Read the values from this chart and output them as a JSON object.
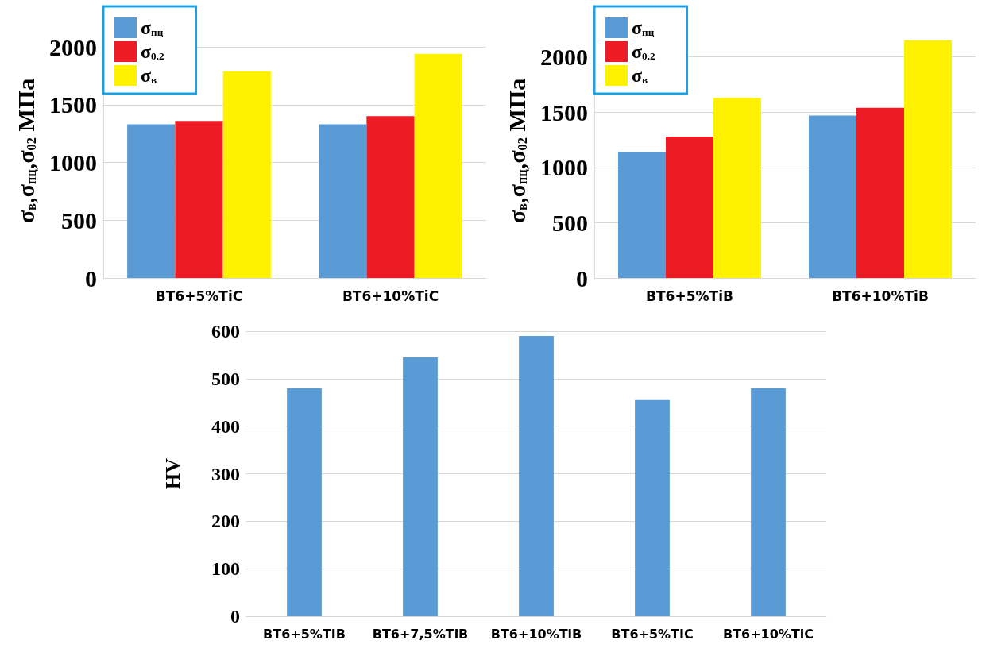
{
  "chart_data": [
    {
      "type": "bar",
      "categories": [
        "BT6+5%TiC",
        "BT6+10%TiC"
      ],
      "ylabel": "σ$_{в}$,σ$_{пц}$,σ$_{02}$ МПа",
      "ylim": [
        0,
        2200
      ],
      "yticks": [
        0,
        500,
        1000,
        1500,
        2000
      ],
      "grid": "y",
      "legend": "top left",
      "series": [
        {
          "name": "σ$_{пц}$",
          "color": "#5b9bd5",
          "values": [
            1330,
            1330
          ]
        },
        {
          "name": "σ$_{0.2}$",
          "color": "#ed1c24",
          "values": [
            1360,
            1400
          ]
        },
        {
          "name": "σ$_{в}$",
          "color": "#fff200",
          "values": [
            1790,
            1940
          ]
        }
      ]
    },
    {
      "type": "bar",
      "categories": [
        "BT6+5%TiB",
        "BT6+10%TiB"
      ],
      "ylabel": "σ$_{в}$,σ$_{пц}$,σ$_{02}$ МПа",
      "ylim": [
        0,
        2300
      ],
      "yticks": [
        0,
        500,
        1000,
        1500,
        2000
      ],
      "grid": "y",
      "legend": "top left",
      "series": [
        {
          "name": "σ$_{пц}$",
          "color": "#5b9bd5",
          "values": [
            1140,
            1470
          ]
        },
        {
          "name": "σ$_{0.2}$",
          "color": "#ed1c24",
          "values": [
            1280,
            1540
          ]
        },
        {
          "name": "σ$_{в}$",
          "color": "#fff200",
          "values": [
            1630,
            2150
          ]
        }
      ]
    },
    {
      "type": "bar",
      "categories": [
        "BT6+5%TIB",
        "BT6+7,5%TiB",
        "BT6+10%TiB",
        "BT6+5%TIC",
        "BT6+10%TiC"
      ],
      "ylabel": "HV",
      "ylim": [
        0,
        600
      ],
      "yticks": [
        0,
        100,
        200,
        300,
        400,
        500,
        600
      ],
      "grid": "y",
      "color": "#5b9bd5",
      "values": [
        480,
        545,
        590,
        455,
        480
      ]
    }
  ]
}
